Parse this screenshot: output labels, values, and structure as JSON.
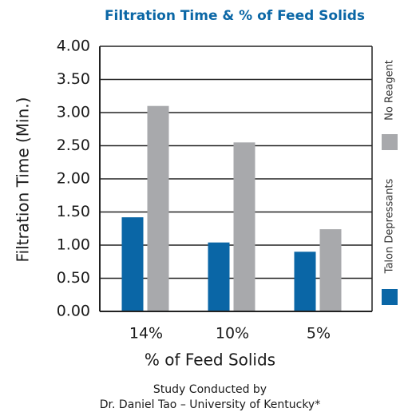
{
  "chart_data": {
    "type": "bar",
    "title": "Filtration Time & % of Feed Solids",
    "x_label": "% of Feed Solids",
    "y_label": "Filtration Time (Min.)",
    "categories": [
      "14%",
      "10%",
      "5%"
    ],
    "series": [
      {
        "name": "Talon Depressants",
        "color": "#0a66a6",
        "values": [
          1.42,
          1.04,
          0.9
        ]
      },
      {
        "name": "No Reagent",
        "color": "#a8a9ac",
        "values": [
          3.1,
          2.55,
          1.24
        ]
      }
    ],
    "ylim": [
      0,
      4
    ],
    "yticks": [
      {
        "value": 0,
        "label": "0.00"
      },
      {
        "value": 0.5,
        "label": "0.50"
      },
      {
        "value": 1,
        "label": "1.00"
      },
      {
        "value": 1.5,
        "label": "1.50"
      },
      {
        "value": 2,
        "label": "2.00"
      },
      {
        "value": 2.5,
        "label": "2.50"
      },
      {
        "value": 3,
        "label": "3.00"
      },
      {
        "value": 3.5,
        "label": "3.50"
      },
      {
        "value": 4,
        "label": "4.00"
      }
    ],
    "grid": true,
    "legend": "right",
    "notes": [
      "Study Conducted by",
      "Dr. Daniel Tao – University of Kentucky*"
    ]
  }
}
